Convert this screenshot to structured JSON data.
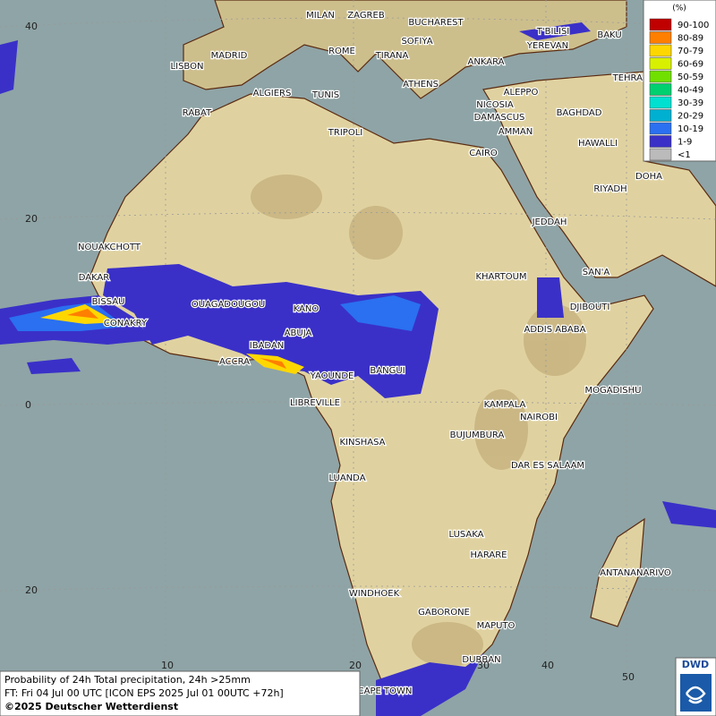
{
  "map": {
    "cities": [
      "MILAN",
      "ZAGREB",
      "BUCHAREST",
      "T'BILISI",
      "BAKU",
      "YEREVAN",
      "LISBON",
      "MADRID",
      "ROME",
      "SOFIYA",
      "TIRANA",
      "ANKARA",
      "TEHRAN",
      "ALGIERS",
      "TUNIS",
      "ATHENS",
      "ALEPPO",
      "RABAT",
      "NICOSIA",
      "BAGHDAD",
      "DAMASCUS",
      "TRIPOLI",
      "AMMAN",
      "HAWALLI",
      "CAIRO",
      "DOHA",
      "RIYADH",
      "JEDDAH",
      "NOUAKCHOTT",
      "DAKAR",
      "KHARTOUM",
      "SAN'A",
      "BISSAU",
      "OUAGADOUGOU",
      "KANO",
      "DJIBOUTI",
      "CONAKRY",
      "ABUJA",
      "ADDIS ABABA",
      "IBADAN",
      "ACCRA",
      "BANGUI",
      "YAOUNDE",
      "MOGADISHU",
      "LIBREVILLE",
      "KAMPALA",
      "NAIROBI",
      "BUJUMBURA",
      "KINSHASA",
      "DAR ES SALAAM",
      "LUANDA",
      "LUSAKA",
      "HARARE",
      "ANTANANARIVO",
      "WINDHOEK",
      "GABORONE",
      "MAPUTO",
      "DURBAN",
      "CAPE TOWN"
    ],
    "lat_labels": [
      40,
      20,
      0,
      20
    ],
    "lon_labels": [
      10,
      20,
      30,
      40,
      50
    ]
  },
  "legend": {
    "title": "(%)",
    "entries": [
      {
        "label": "90-100",
        "color": "#c00000"
      },
      {
        "label": "80-89",
        "color": "#ff7f00"
      },
      {
        "label": "70-79",
        "color": "#ffd700"
      },
      {
        "label": "60-69",
        "color": "#d8f000"
      },
      {
        "label": "50-59",
        "color": "#70e000"
      },
      {
        "label": "40-49",
        "color": "#00d070"
      },
      {
        "label": "30-39",
        "color": "#00e0d0"
      },
      {
        "label": "20-29",
        "color": "#00b0d0"
      },
      {
        "label": "10-19",
        "color": "#2a70f0"
      },
      {
        "label": "1-9",
        "color": "#3a30c8"
      },
      {
        "label": "<1",
        "color": "#bbbbbb"
      }
    ]
  },
  "info": {
    "line1": "Probability of 24h Total precipitation, 24h >25mm",
    "line2": "FT: Fri 04 Jul 00 UTC [ICON EPS 2025 Jul 01 00UTC +72h]",
    "line3": "©2025 Deutscher Wetterdienst"
  },
  "logo": "DWD"
}
